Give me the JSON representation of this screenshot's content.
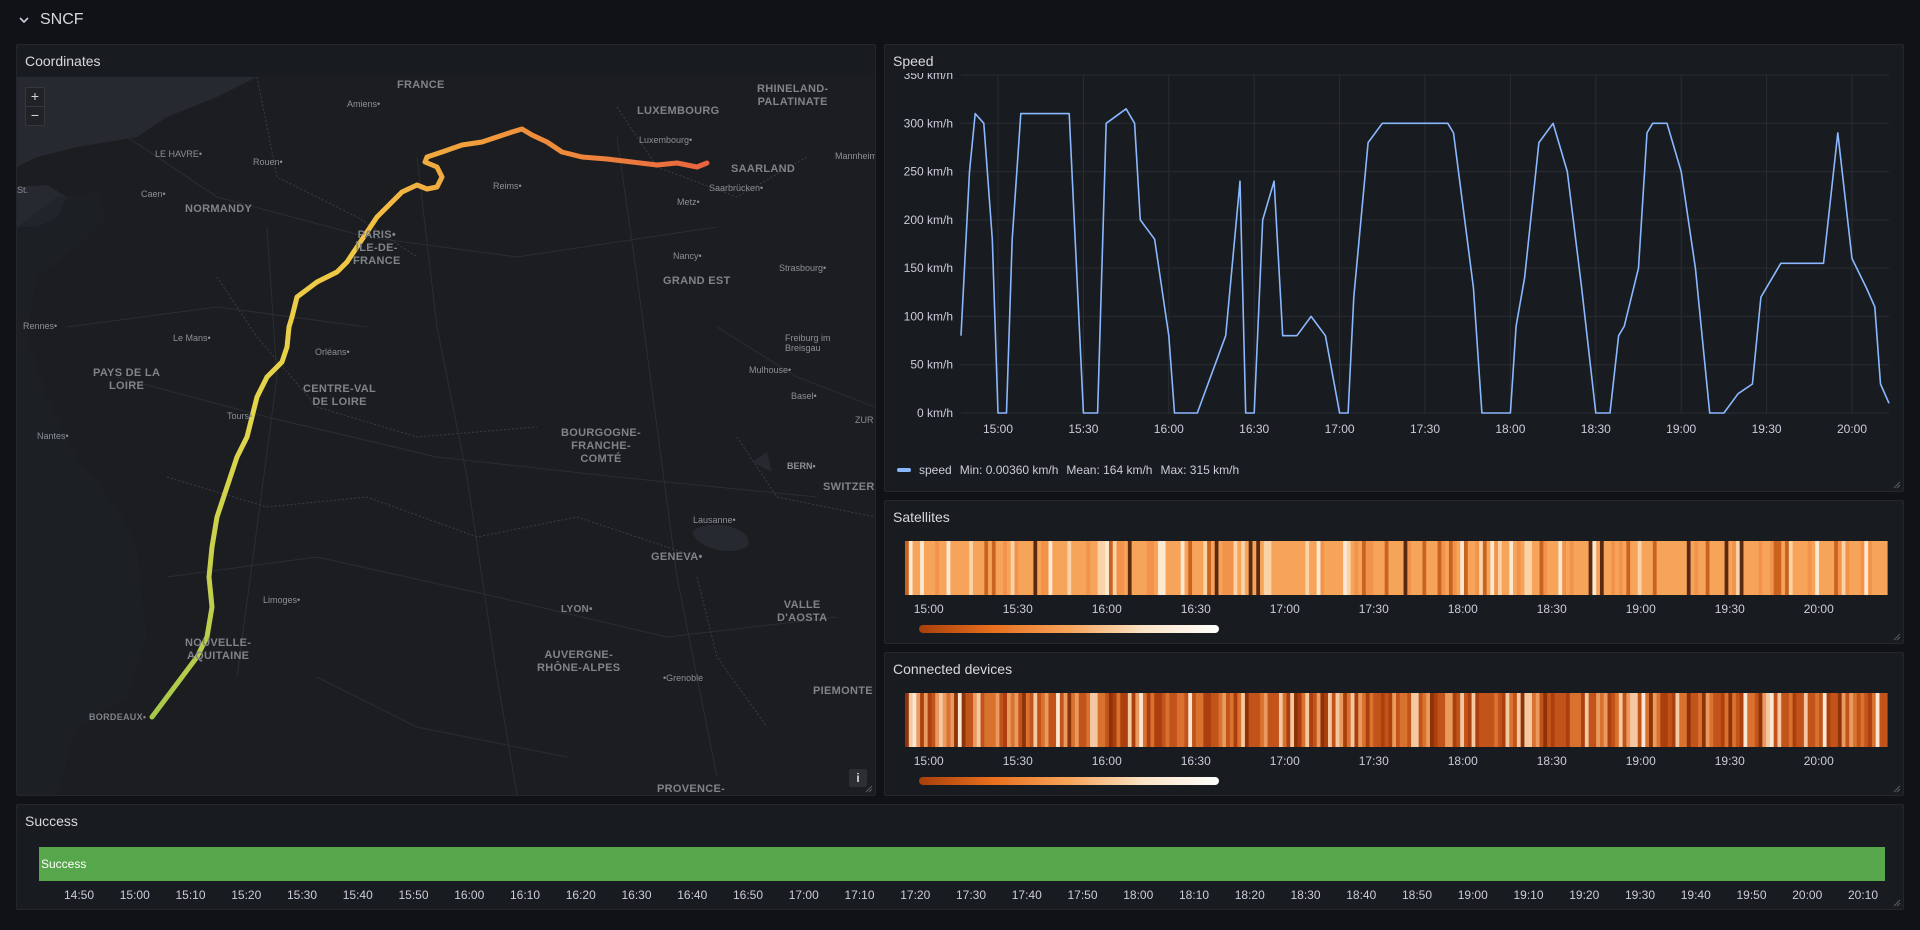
{
  "row": {
    "title": "SNCF",
    "chevron_icon": "chevron-down-icon"
  },
  "map": {
    "title": "Coordinates",
    "zoom_in": "+",
    "zoom_out": "−",
    "info": "i",
    "regions": [
      {
        "id": "france",
        "text": "FRANCE"
      },
      {
        "id": "rhineland",
        "text": "RHINELAND-\nPALATINATE"
      },
      {
        "id": "luxembourg",
        "text": "LUXEMBOURG"
      },
      {
        "id": "saarland",
        "text": "SAARLAND"
      },
      {
        "id": "normandy",
        "text": "NORMANDY"
      },
      {
        "id": "idf",
        "text": "PARIS•\nÎLE-DE-\nFRANCE"
      },
      {
        "id": "grandest",
        "text": "GRAND EST"
      },
      {
        "id": "pdl",
        "text": "PAYS DE LA\nLOIRE"
      },
      {
        "id": "cvl",
        "text": "CENTRE-VAL\nDE LOIRE"
      },
      {
        "id": "bfc",
        "text": "BOURGOGNE-\nFRANCHE-\nCOMTÉ"
      },
      {
        "id": "switz",
        "text": "SWITZER"
      },
      {
        "id": "geneva",
        "text": "GENEVA•"
      },
      {
        "id": "valle",
        "text": "VALLE\nD'AOSTA"
      },
      {
        "id": "na",
        "text": "NOUVELLE-\nAQUITAINE"
      },
      {
        "id": "ara",
        "text": "AUVERGNE-\nRHÔNE-ALPES"
      },
      {
        "id": "piemonte",
        "text": "PIEMONTE"
      },
      {
        "id": "provence",
        "text": "PROVENCE-"
      },
      {
        "id": "bordeaux",
        "text": "BORDEAUX•"
      },
      {
        "id": "lyon",
        "text": "LYON•"
      }
    ],
    "cities": [
      {
        "id": "amiens",
        "text": "Amiens•"
      },
      {
        "id": "lehavre",
        "text": "LE HAVRE•"
      },
      {
        "id": "rouen",
        "text": "Rouen•"
      },
      {
        "id": "caen",
        "text": "Caen•"
      },
      {
        "id": "reims",
        "text": "Reims•"
      },
      {
        "id": "metz",
        "text": "Metz•"
      },
      {
        "id": "luxcity",
        "text": "Luxembourg•"
      },
      {
        "id": "saarbrucken",
        "text": "Saarbrücken•"
      },
      {
        "id": "mannheim",
        "text": "Mannheim"
      },
      {
        "id": "nancy",
        "text": "Nancy•"
      },
      {
        "id": "strasbourg",
        "text": "Strasbourg•"
      },
      {
        "id": "rennes",
        "text": "Rennes•"
      },
      {
        "id": "lemans",
        "text": "Le Mans•"
      },
      {
        "id": "orleans",
        "text": "Orléans•"
      },
      {
        "id": "freiburg",
        "text": "Freiburg im\nBreisgau"
      },
      {
        "id": "mulhouse",
        "text": "Mulhouse•"
      },
      {
        "id": "tours",
        "text": "Tours•"
      },
      {
        "id": "nantes",
        "text": "Nantes•"
      },
      {
        "id": "basel",
        "text": "Basel•"
      },
      {
        "id": "zur",
        "text": "ZUR"
      },
      {
        "id": "bern",
        "text": "BERN•"
      },
      {
        "id": "lausanne",
        "text": "Lausanne•"
      },
      {
        "id": "limoges",
        "text": "Limoges•"
      },
      {
        "id": "grenoble",
        "text": "•Grenoble"
      },
      {
        "id": "stmalo",
        "text": "St."
      }
    ]
  },
  "speed": {
    "title": "Speed",
    "y_ticks": [
      "0 km/h",
      "50 km/h",
      "100 km/h",
      "150 km/h",
      "200 km/h",
      "250 km/h",
      "300 km/h",
      "350 km/h"
    ],
    "x_ticks": [
      "15:00",
      "15:30",
      "16:00",
      "16:30",
      "17:00",
      "17:30",
      "18:00",
      "18:30",
      "19:00",
      "19:30",
      "20:00"
    ],
    "legend": {
      "name": "speed",
      "min": "Min: 0.00360 km/h",
      "mean": "Mean: 164 km/h",
      "max": "Max: 315 km/h"
    },
    "line_color": "#8ab8ff"
  },
  "satellites": {
    "title": "Satellites",
    "x_ticks": [
      "15:00",
      "15:30",
      "16:00",
      "16:30",
      "17:00",
      "17:30",
      "18:00",
      "18:30",
      "19:00",
      "19:30",
      "20:00"
    ]
  },
  "devices": {
    "title": "Connected devices",
    "x_ticks": [
      "15:00",
      "15:30",
      "16:00",
      "16:30",
      "17:00",
      "17:30",
      "18:00",
      "18:30",
      "19:00",
      "19:30",
      "20:00"
    ]
  },
  "success": {
    "title": "Success",
    "state_label": "Success",
    "state_color": "#56a64b",
    "x_ticks": [
      "14:50",
      "15:00",
      "15:10",
      "15:20",
      "15:30",
      "15:40",
      "15:50",
      "16:00",
      "16:10",
      "16:20",
      "16:30",
      "16:40",
      "16:50",
      "17:00",
      "17:10",
      "17:20",
      "17:30",
      "17:40",
      "17:50",
      "18:00",
      "18:10",
      "18:20",
      "18:30",
      "18:40",
      "18:50",
      "19:00",
      "19:10",
      "19:20",
      "19:30",
      "19:40",
      "19:50",
      "20:00",
      "20:10"
    ]
  },
  "chart_data": [
    {
      "type": "line",
      "title": "Speed",
      "ylim": [
        0,
        350
      ],
      "x_range": [
        "14:47",
        "20:13"
      ],
      "series": [
        {
          "name": "speed",
          "x": [
            "14:47",
            "14:50",
            "14:52",
            "14:55",
            "14:58",
            "15:00",
            "15:02",
            "15:03",
            "15:05",
            "15:08",
            "15:15",
            "15:20",
            "15:25",
            "15:30",
            "15:32",
            "15:35",
            "15:38",
            "15:45",
            "15:48",
            "15:50",
            "15:55",
            "16:00",
            "16:02",
            "16:03",
            "16:05",
            "16:10",
            "16:20",
            "16:25",
            "16:27",
            "16:28",
            "16:30",
            "16:33",
            "16:37",
            "16:40",
            "16:45",
            "16:50",
            "16:55",
            "17:00",
            "17:03",
            "17:05",
            "17:10",
            "17:15",
            "17:30",
            "17:35",
            "17:38",
            "17:40",
            "17:47",
            "17:50",
            "17:53",
            "17:55",
            "18:00",
            "18:02",
            "18:05",
            "18:10",
            "18:15",
            "18:20",
            "18:25",
            "18:30",
            "18:35",
            "18:38",
            "18:40",
            "18:45",
            "18:48",
            "18:50",
            "18:55",
            "19:00",
            "19:05",
            "19:10",
            "19:15",
            "19:20",
            "19:25",
            "19:28",
            "19:32",
            "19:35",
            "19:40",
            "19:50",
            "19:55",
            "20:00",
            "20:05",
            "20:08",
            "20:10",
            "20:13"
          ],
          "values": [
            80,
            250,
            310,
            300,
            180,
            0,
            0,
            0,
            180,
            310,
            310,
            310,
            310,
            0,
            0,
            0,
            300,
            315,
            300,
            200,
            180,
            80,
            0,
            0,
            0,
            0,
            80,
            240,
            0,
            0,
            0,
            200,
            240,
            80,
            80,
            100,
            80,
            0,
            0,
            120,
            280,
            300,
            300,
            300,
            300,
            290,
            130,
            0,
            0,
            0,
            0,
            90,
            140,
            280,
            300,
            250,
            130,
            0,
            0,
            80,
            90,
            150,
            290,
            300,
            300,
            250,
            150,
            0,
            0,
            20,
            30,
            120,
            140,
            155,
            155,
            155,
            290,
            160,
            130,
            110,
            30,
            10
          ]
        }
      ]
    }
  ]
}
